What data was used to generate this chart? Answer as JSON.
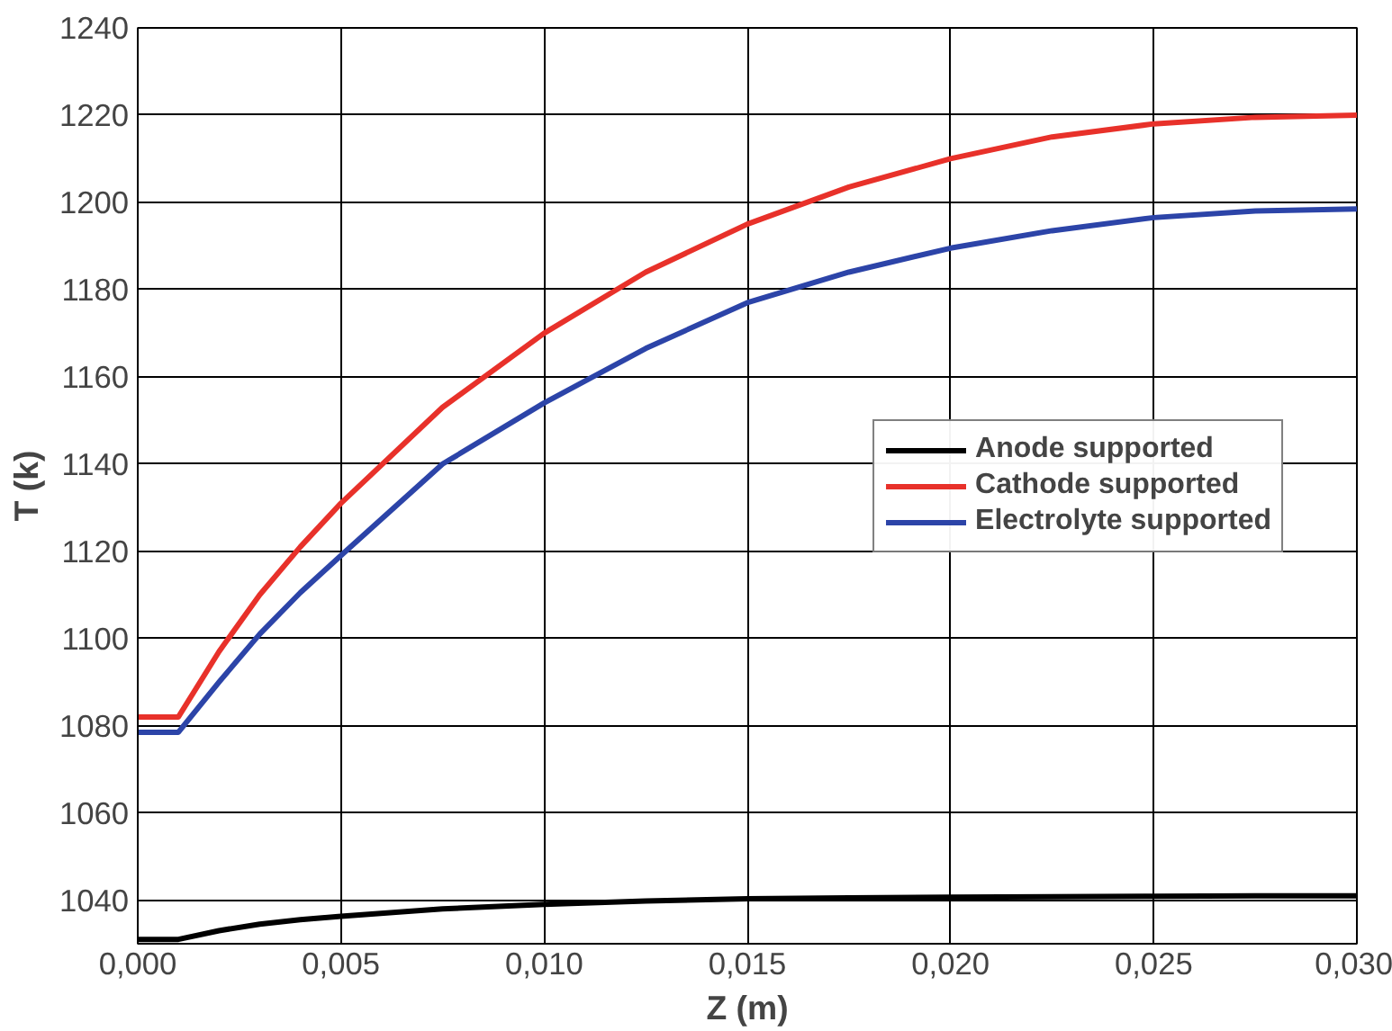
{
  "chart_data": {
    "type": "line",
    "xlabel": "Z (m)",
    "ylabel": "T (k)",
    "xlim": [
      0,
      0.03
    ],
    "ylim": [
      1030,
      1240
    ],
    "xticks": [
      {
        "value": 0,
        "label": "0,000"
      },
      {
        "value": 0.005,
        "label": "0,005"
      },
      {
        "value": 0.01,
        "label": "0,010"
      },
      {
        "value": 0.015,
        "label": "0,015"
      },
      {
        "value": 0.02,
        "label": "0,020"
      },
      {
        "value": 0.025,
        "label": "0,025"
      },
      {
        "value": 0.03,
        "label": "0,030"
      }
    ],
    "yticks": [
      1040,
      1060,
      1080,
      1100,
      1120,
      1140,
      1160,
      1180,
      1200,
      1220,
      1240
    ],
    "x": [
      0,
      0.001,
      0.002,
      0.003,
      0.004,
      0.005,
      0.0075,
      0.01,
      0.0125,
      0.015,
      0.0175,
      0.02,
      0.0225,
      0.025,
      0.0275,
      0.03
    ],
    "series": [
      {
        "name": "Anode supported",
        "color": "#000000",
        "values": [
          1031,
          1031,
          1033,
          1034.5,
          1035.5,
          1036.3,
          1038,
          1039,
          1039.8,
          1040.3,
          1040.5,
          1040.7,
          1040.8,
          1040.9,
          1041,
          1041
        ]
      },
      {
        "name": "Cathode supported",
        "color": "#e8312a",
        "values": [
          1082,
          1082,
          1097,
          1110,
          1121,
          1131,
          1153,
          1170,
          1184,
          1195,
          1203.5,
          1210,
          1215,
          1218,
          1219.5,
          1220
        ]
      },
      {
        "name": "Electrolyte supported",
        "color": "#2c44a8",
        "values": [
          1078.5,
          1078.5,
          1090,
          1101,
          1110.5,
          1119,
          1140,
          1154,
          1166.5,
          1177,
          1184,
          1189.5,
          1193.5,
          1196.5,
          1198,
          1198.5
        ]
      }
    ],
    "grid": true,
    "legend": "right",
    "marker": "none",
    "line_style": "solid"
  }
}
